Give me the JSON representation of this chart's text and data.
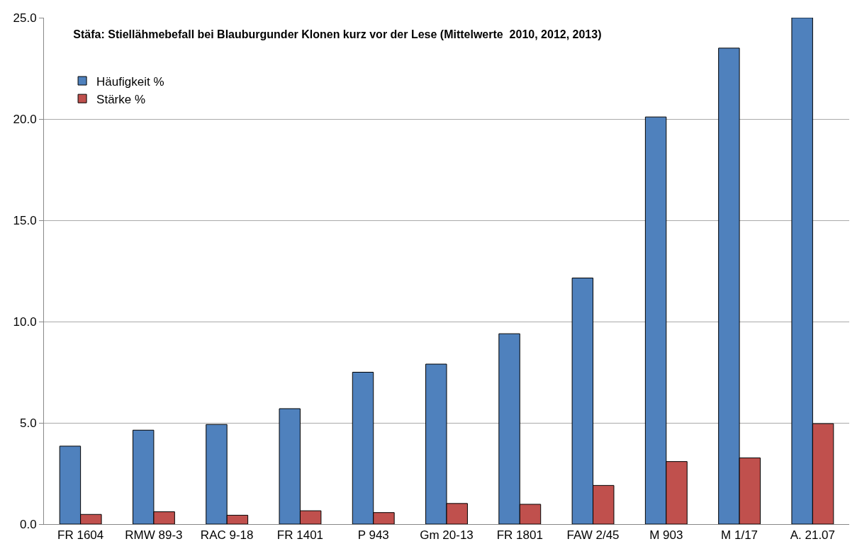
{
  "chart_data": {
    "type": "bar",
    "title": "Stäfa: Stiellähmebefall bei Blauburgunder Klonen kurz vor der Lese (Mittelwerte  2010, 2012, 2013)",
    "categories": [
      "FR 1604",
      "RMW 89-3",
      "RAC 9-18",
      "FR 1401",
      "P 943",
      "Gm 20-13",
      "FR 1801",
      "FAW 2/45",
      "M 903",
      "M 1/17",
      "A. 21.07"
    ],
    "series": [
      {
        "name": "Häufigkeit %",
        "color": "#4f81bd",
        "values": [
          3.85,
          4.64,
          4.92,
          5.7,
          7.5,
          7.9,
          9.4,
          12.15,
          20.1,
          23.5,
          25.0
        ]
      },
      {
        "name": "Stärke %",
        "color": "#c0504d",
        "values": [
          0.48,
          0.61,
          0.44,
          0.66,
          0.57,
          1.02,
          0.98,
          1.91,
          3.09,
          3.27,
          4.96
        ]
      }
    ],
    "ylim": [
      0,
      25
    ],
    "yticks": [
      {
        "value": 0,
        "label": "0.0"
      },
      {
        "value": 5,
        "label": "5.0"
      },
      {
        "value": 10,
        "label": "10.0"
      },
      {
        "value": 15,
        "label": "15.0"
      },
      {
        "value": 20,
        "label": "20.0"
      },
      {
        "value": 25,
        "label": "25.0"
      }
    ],
    "grid": "y",
    "legend": "top left"
  }
}
